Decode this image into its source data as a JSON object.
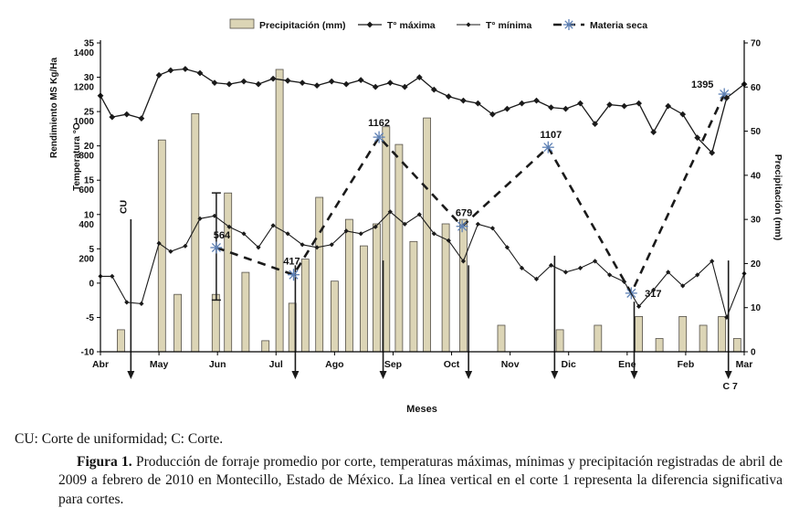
{
  "caption": {
    "note": "CU: Corte de uniformidad; C: Corte.",
    "figura_label": "Figura 1.",
    "figura_text": " Producción de forraje promedio por corte, temperaturas máximas, mínimas y precipitación registradas de abril de 2009 a febrero de 2010 en Montecillo, Estado de México. La línea vertical en el corte 1 representa la diferencia significativa para cortes."
  },
  "chart_data": {
    "type": "combo",
    "title": "",
    "x_axis": {
      "label": "Meses",
      "categories": [
        "Abr",
        "May",
        "Jun",
        "Jul",
        "Ago",
        "Sep",
        "Oct",
        "Nov",
        "Dic",
        "Ene",
        "Feb",
        "Mar"
      ],
      "unit": "month index 0-11"
    },
    "axes": {
      "left_rendimiento": {
        "label": "Rendimiento MS Kg/Ha",
        "ticks": [
          1400,
          1200,
          1000,
          800,
          600,
          400,
          200
        ],
        "range": [
          0,
          1400
        ]
      },
      "left_temperatura": {
        "label": "Temperatura °C",
        "ticks": [
          35,
          30,
          25,
          20,
          15,
          10,
          5,
          0,
          -5,
          -10
        ],
        "range": [
          -10,
          35
        ]
      },
      "right_precipitacion": {
        "label": "Precipitación (mm)",
        "ticks": [
          70,
          60,
          50,
          40,
          30,
          20,
          10,
          0
        ],
        "range": [
          0,
          70
        ]
      }
    },
    "series": [
      {
        "name": "Precipitación (mm)",
        "type": "bar",
        "axis": "right_precipitacion",
        "color": "#dcd5b6",
        "stroke": "#55514a",
        "points": [
          [
            0.35,
            5
          ],
          [
            1.05,
            48
          ],
          [
            1.32,
            13
          ],
          [
            1.62,
            54
          ],
          [
            1.97,
            13
          ],
          [
            2.18,
            36
          ],
          [
            2.48,
            18
          ],
          [
            2.82,
            2.5
          ],
          [
            3.06,
            64
          ],
          [
            3.28,
            11
          ],
          [
            3.5,
            21
          ],
          [
            3.74,
            35
          ],
          [
            4.0,
            16
          ],
          [
            4.25,
            30
          ],
          [
            4.5,
            24
          ],
          [
            4.72,
            29
          ],
          [
            4.88,
            51
          ],
          [
            5.1,
            47
          ],
          [
            5.35,
            25
          ],
          [
            5.58,
            53
          ],
          [
            5.9,
            29
          ],
          [
            6.2,
            30
          ],
          [
            6.85,
            6
          ],
          [
            7.85,
            5
          ],
          [
            8.5,
            6
          ],
          [
            9.2,
            8
          ],
          [
            9.55,
            3
          ],
          [
            9.95,
            8
          ],
          [
            10.3,
            6
          ],
          [
            10.62,
            8
          ],
          [
            10.88,
            3
          ]
        ]
      },
      {
        "name": "T° máxima",
        "type": "line",
        "marker": "diamond",
        "axis": "left_temperatura",
        "color": "#1a1a1a",
        "points": [
          [
            0,
            27.3
          ],
          [
            0.2,
            24.2
          ],
          [
            0.45,
            24.6
          ],
          [
            0.7,
            24.0
          ],
          [
            1.0,
            30.3
          ],
          [
            1.2,
            31.0
          ],
          [
            1.45,
            31.2
          ],
          [
            1.7,
            30.6
          ],
          [
            1.95,
            29.2
          ],
          [
            2.2,
            29.0
          ],
          [
            2.45,
            29.4
          ],
          [
            2.7,
            29.0
          ],
          [
            2.95,
            29.8
          ],
          [
            3.2,
            29.5
          ],
          [
            3.45,
            29.2
          ],
          [
            3.7,
            28.8
          ],
          [
            3.95,
            29.4
          ],
          [
            4.2,
            29.0
          ],
          [
            4.45,
            29.6
          ],
          [
            4.7,
            28.6
          ],
          [
            4.95,
            29.2
          ],
          [
            5.2,
            28.6
          ],
          [
            5.45,
            30.0
          ],
          [
            5.7,
            28.2
          ],
          [
            5.95,
            27.2
          ],
          [
            6.2,
            26.6
          ],
          [
            6.45,
            26.2
          ],
          [
            6.7,
            24.6
          ],
          [
            6.95,
            25.4
          ],
          [
            7.2,
            26.2
          ],
          [
            7.45,
            26.6
          ],
          [
            7.7,
            25.6
          ],
          [
            7.95,
            25.4
          ],
          [
            8.2,
            26.2
          ],
          [
            8.45,
            23.2
          ],
          [
            8.7,
            26.0
          ],
          [
            8.95,
            25.8
          ],
          [
            9.2,
            26.2
          ],
          [
            9.45,
            22.0
          ],
          [
            9.7,
            25.8
          ],
          [
            9.95,
            24.6
          ],
          [
            10.2,
            21.2
          ],
          [
            10.45,
            19.0
          ],
          [
            10.7,
            27.0
          ],
          [
            11,
            29.0
          ]
        ]
      },
      {
        "name": "T° mínima",
        "type": "line",
        "marker": "diamond-small",
        "axis": "left_temperatura",
        "color": "#1a1a1a",
        "points": [
          [
            0,
            1.0
          ],
          [
            0.2,
            1.0
          ],
          [
            0.45,
            -2.8
          ],
          [
            0.7,
            -3.0
          ],
          [
            1.0,
            5.8
          ],
          [
            1.2,
            4.6
          ],
          [
            1.45,
            5.4
          ],
          [
            1.7,
            9.4
          ],
          [
            1.95,
            9.8
          ],
          [
            2.2,
            8.2
          ],
          [
            2.45,
            7.2
          ],
          [
            2.7,
            5.2
          ],
          [
            2.95,
            8.4
          ],
          [
            3.2,
            7.2
          ],
          [
            3.45,
            5.6
          ],
          [
            3.7,
            5.2
          ],
          [
            3.95,
            5.6
          ],
          [
            4.2,
            7.6
          ],
          [
            4.45,
            7.2
          ],
          [
            4.7,
            8.2
          ],
          [
            4.95,
            10.4
          ],
          [
            5.2,
            8.6
          ],
          [
            5.45,
            10.0
          ],
          [
            5.7,
            7.2
          ],
          [
            5.95,
            6.2
          ],
          [
            6.2,
            3.2
          ],
          [
            6.45,
            8.6
          ],
          [
            6.7,
            8.0
          ],
          [
            6.95,
            5.2
          ],
          [
            7.2,
            2.2
          ],
          [
            7.45,
            0.6
          ],
          [
            7.7,
            2.6
          ],
          [
            7.95,
            1.6
          ],
          [
            8.2,
            2.2
          ],
          [
            8.45,
            3.2
          ],
          [
            8.7,
            1.2
          ],
          [
            8.95,
            0.2
          ],
          [
            9.2,
            -3.4
          ],
          [
            9.45,
            -1.0
          ],
          [
            9.7,
            1.6
          ],
          [
            9.95,
            -0.4
          ],
          [
            10.2,
            1.2
          ],
          [
            10.45,
            3.2
          ],
          [
            10.7,
            -5.0
          ],
          [
            11,
            1.4
          ]
        ]
      },
      {
        "name": "Materia seca",
        "type": "line-dashed",
        "marker": "star",
        "axis": "left_rendimiento",
        "color": "#1a1a1a",
        "marker_color": "#5e81b5",
        "points": [
          {
            "x": 1.98,
            "v": 564,
            "label": "564",
            "dx": 6,
            "dy": -10
          },
          {
            "x": 3.3,
            "v": 417,
            "label": "417",
            "dx": -2,
            "dy": -11
          },
          {
            "x": 4.76,
            "v": 1162,
            "label": "1162",
            "dx": 0,
            "dy": -12
          },
          {
            "x": 6.18,
            "v": 679,
            "label": "679",
            "dx": 2,
            "dy": -11
          },
          {
            "x": 7.65,
            "v": 1107,
            "label": "1107",
            "dx": 3,
            "dy": -10
          },
          {
            "x": 9.07,
            "v": 317,
            "label": "317",
            "dx": 24,
            "dy": 4
          },
          {
            "x": 10.66,
            "v": 1395,
            "label": "1395",
            "dx": -24,
            "dy": -7
          }
        ]
      }
    ],
    "annotations": {
      "cuts": [
        {
          "x": 0.52,
          "top_temp": 9.3,
          "label": "CU",
          "label_style": "rotated"
        },
        {
          "x": 3.33,
          "top_temp": 2.6
        },
        {
          "x": 4.83,
          "top_temp": 3.3
        },
        {
          "x": 6.29,
          "top_temp": 2.6
        },
        {
          "x": 7.76,
          "top_temp": 4.0
        },
        {
          "x": 9.12,
          "top_temp": -2.7
        },
        {
          "x": 10.73,
          "top_temp": 3.3,
          "label": "C 7",
          "label_style": "below"
        }
      ],
      "error_bar": {
        "x": 1.98,
        "low": 280,
        "high": 860
      }
    },
    "legend_position": "top"
  }
}
